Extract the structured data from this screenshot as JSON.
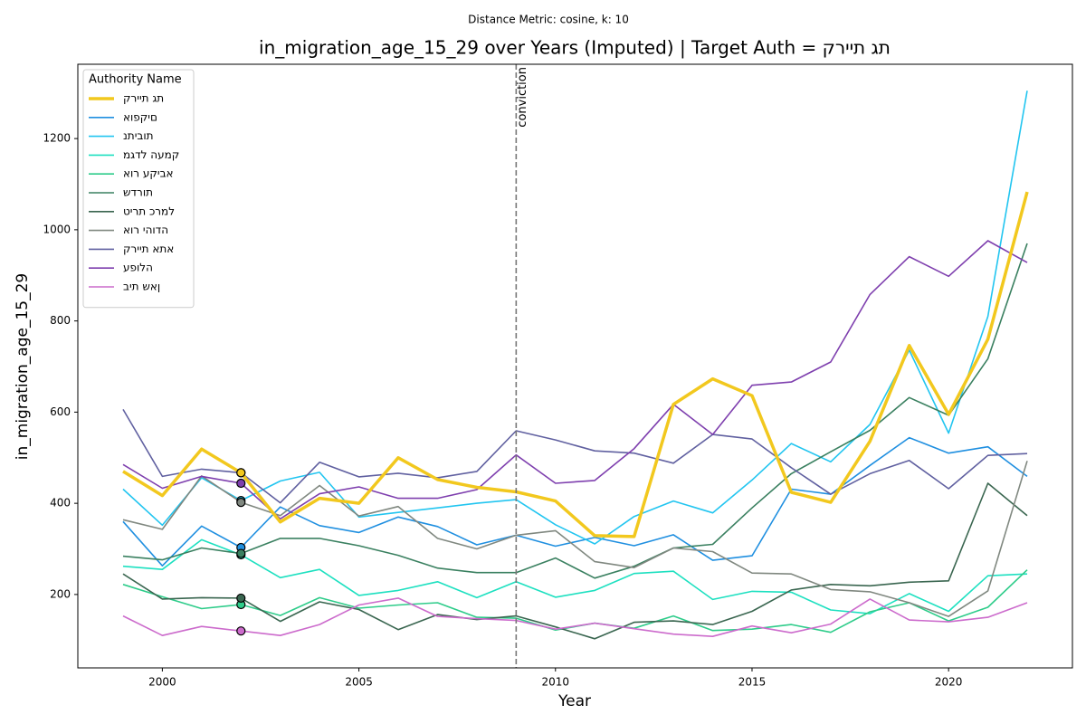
{
  "chart_data": {
    "type": "line",
    "suptitle": "Distance Metric: cosine, k: 10",
    "title": "in_migration_age_15_29 over Years (Imputed) | Target Auth = קריית גת",
    "x_label": "Year",
    "y_label": "in_migration_age_15_29",
    "legend_title": "Authority Name",
    "legend_position": "upper-left",
    "grid": false,
    "x": [
      1999,
      2000,
      2001,
      2002,
      2003,
      2004,
      2005,
      2006,
      2007,
      2008,
      2009,
      2010,
      2011,
      2012,
      2013,
      2014,
      2015,
      2016,
      2017,
      2018,
      2019,
      2020,
      2021,
      2022
    ],
    "xlim": [
      1997.85,
      2023.15
    ],
    "ylim": [
      39,
      1363
    ],
    "xticks": [
      2000,
      2005,
      2010,
      2015,
      2020
    ],
    "yticks": [
      200,
      400,
      600,
      800,
      1000,
      1200
    ],
    "vline": {
      "x": 2009,
      "label": "conviction"
    },
    "highlight_x": 2002,
    "series": [
      {
        "name": "קריית גת",
        "color": "#f2c81e",
        "target": true,
        "values": [
          470,
          417,
          519,
          467,
          359,
          411,
          400,
          500,
          452,
          435,
          425,
          405,
          329,
          327,
          617,
          673,
          636,
          424,
          402,
          536,
          746,
          595,
          760,
          1083
        ]
      },
      {
        "name": "אופקים",
        "color": "#1f8fe0",
        "values": [
          360,
          263,
          350,
          303,
          392,
          351,
          336,
          370,
          349,
          309,
          330,
          306,
          325,
          307,
          331,
          275,
          285,
          431,
          420,
          483,
          544,
          510,
          524,
          459
        ]
      },
      {
        "name": "נתיבות",
        "color": "#22c5f0",
        "values": [
          431,
          352,
          456,
          406,
          449,
          468,
          370,
          380,
          390,
          400,
          408,
          353,
          311,
          371,
          405,
          379,
          451,
          531,
          491,
          573,
          736,
          554,
          810,
          1305
        ]
      },
      {
        "name": "מגדל העמק",
        "color": "#1de0c0",
        "values": [
          262,
          255,
          320,
          287,
          237,
          255,
          198,
          209,
          228,
          193,
          228,
          194,
          209,
          246,
          251,
          189,
          207,
          205,
          166,
          158,
          202,
          163,
          241,
          245
        ]
      },
      {
        "name": "אור עקיבא",
        "color": "#2ecc8a",
        "values": [
          222,
          195,
          169,
          178,
          154,
          193,
          170,
          177,
          182,
          150,
          148,
          122,
          137,
          126,
          153,
          121,
          124,
          134,
          117,
          162,
          182,
          142,
          172,
          254
        ]
      },
      {
        "name": "שדרות",
        "color": "#3a8060",
        "values": [
          284,
          276,
          302,
          290,
          323,
          323,
          307,
          286,
          258,
          248,
          248,
          280,
          236,
          262,
          302,
          310,
          390,
          465,
          513,
          560,
          632,
          593,
          717,
          970
        ]
      },
      {
        "name": "טירת כרמל",
        "color": "#3a6650",
        "values": [
          245,
          190,
          193,
          192,
          141,
          184,
          167,
          123,
          156,
          145,
          153,
          129,
          103,
          139,
          142,
          134,
          163,
          210,
          222,
          219,
          227,
          230,
          444,
          373
        ]
      },
      {
        "name": "אור יהודה",
        "color": "#808880",
        "values": [
          364,
          343,
          460,
          402,
          373,
          439,
          372,
          393,
          323,
          300,
          330,
          340,
          272,
          259,
          302,
          294,
          247,
          245,
          211,
          206,
          182,
          152,
          208,
          493
        ]
      },
      {
        "name": "קריית אתא",
        "color": "#6060a0",
        "values": [
          606,
          459,
          475,
          467,
          401,
          490,
          458,
          466,
          456,
          470,
          559,
          539,
          515,
          510,
          488,
          551,
          541,
          478,
          420,
          465,
          494,
          432,
          505,
          509
        ]
      },
      {
        "name": "עפולה",
        "color": "#7e3fae",
        "values": [
          485,
          433,
          459,
          444,
          366,
          421,
          436,
          411,
          411,
          430,
          506,
          444,
          450,
          520,
          617,
          551,
          659,
          666,
          710,
          858,
          941,
          898,
          976,
          928
        ]
      },
      {
        "name": "בית שאן",
        "color": "#cc6bcc",
        "values": [
          153,
          110,
          130,
          120,
          110,
          134,
          177,
          192,
          152,
          147,
          143,
          124,
          137,
          125,
          113,
          108,
          131,
          116,
          135,
          190,
          144,
          140,
          150,
          182
        ]
      }
    ]
  }
}
